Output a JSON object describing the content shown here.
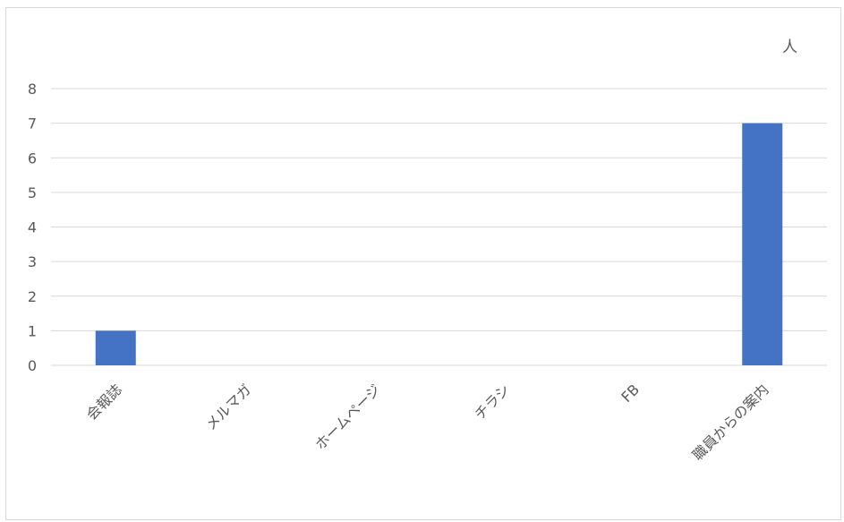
{
  "chart_data": {
    "type": "bar",
    "categories": [
      "会報誌",
      "メルマガ",
      "ホームページ",
      "チラシ",
      "FB",
      "職員からの案内"
    ],
    "values": [
      1,
      0,
      0,
      0,
      0,
      7
    ],
    "ylabel": "人",
    "ylim": [
      0,
      8
    ],
    "yticks": [
      "0",
      "1",
      "2",
      "3",
      "4",
      "5",
      "6",
      "7",
      "8"
    ],
    "grid": true,
    "legend": "none",
    "bar_color": "#4472c4",
    "grid_color": "#d9d9d9"
  }
}
